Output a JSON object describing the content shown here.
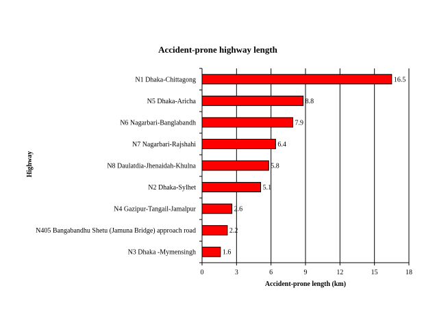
{
  "chart_data": {
    "type": "bar",
    "orientation": "horizontal",
    "title": "Accident-prone highway length",
    "xlabel": "Accident-prone length (km)",
    "ylabel": "Highway",
    "xlim": [
      0,
      18
    ],
    "xticks": [
      0,
      3,
      6,
      9,
      12,
      15,
      18
    ],
    "grid": "vertical",
    "bar_color": "#ff0000",
    "categories": [
      "N1 Dhaka-Chittagong",
      "N5 Dhaka-Aricha",
      "N6 Nagarbari-Banglabandh",
      "N7 Nagarbari-Rajshahi",
      "N8 Daulatdia-Jhenaidah-Khulna",
      "N2 Dhaka-Sylhet",
      "N4 Gazipur-Tangail-Jamalpur",
      "N405 Bangabandhu Shetu (Jamuna Bridge) approach road",
      "N3 Dhaka -Mymensingh"
    ],
    "values": [
      16.5,
      8.8,
      7.9,
      6.4,
      5.8,
      5.1,
      2.6,
      2.2,
      1.6
    ]
  }
}
